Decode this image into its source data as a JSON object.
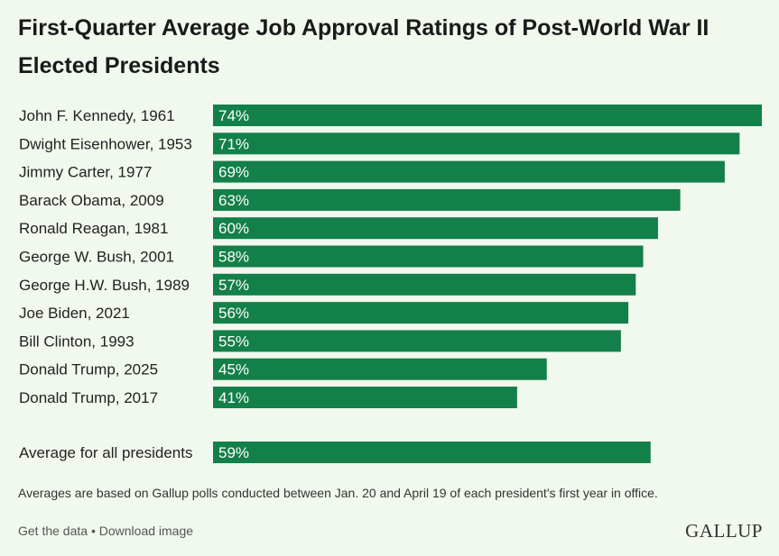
{
  "title": "First-Quarter Average Job Approval Ratings of Post-World War II Elected Presidents",
  "footnote": "Averages are based on Gallup polls conducted between Jan. 20 and April 19 of each president's first year in office.",
  "links": {
    "get_data": "Get the data",
    "separator": " • ",
    "download": "Download image"
  },
  "logo": "GALLUP",
  "colors": {
    "bar": "#138049",
    "background": "#f1f8ee",
    "label_text": "#ffffff"
  },
  "chart_data": {
    "type": "bar",
    "orientation": "horizontal",
    "unit": "%",
    "xlim": [
      0,
      74
    ],
    "categories": [
      "John F. Kennedy, 1961",
      "Dwight Eisenhower, 1953",
      "Jimmy Carter, 1977",
      "Barack Obama, 2009",
      "Ronald Reagan, 1981",
      "George W. Bush, 2001",
      "George H.W. Bush, 1989",
      "Joe Biden, 2021",
      "Bill Clinton, 1993",
      "Donald Trump, 2025",
      "Donald Trump, 2017"
    ],
    "values": [
      74,
      71,
      69,
      63,
      60,
      58,
      57,
      56,
      55,
      45,
      41
    ],
    "data_labels": [
      "74%",
      "71%",
      "69%",
      "63%",
      "60%",
      "58%",
      "57%",
      "56%",
      "55%",
      "45%",
      "41%"
    ],
    "average": {
      "category": "Average for all presidents",
      "value": 59,
      "data_label": "59%"
    }
  }
}
